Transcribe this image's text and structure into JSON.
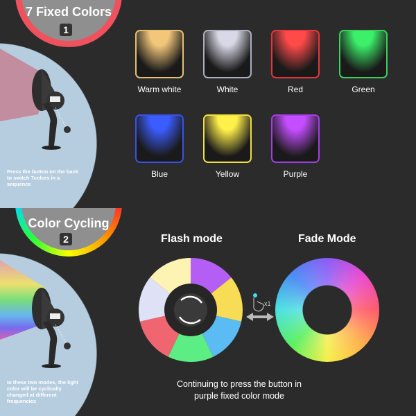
{
  "section1": {
    "title": "7 Fixed Colors",
    "number": "1",
    "note": "Press the button on the back to switch 7colors in a sequence",
    "colors": [
      {
        "label": "Warm white",
        "color": "#f3c77a",
        "border": "#e7c071"
      },
      {
        "label": "White",
        "color": "#d8d8e6",
        "border": "#aab0bf"
      },
      {
        "label": "Red",
        "color": "#ff4a4a",
        "border": "#e8353b"
      },
      {
        "label": "Green",
        "color": "#3cf06a",
        "border": "#39d05b"
      },
      {
        "label": "Blue",
        "color": "#3b5cff",
        "border": "#3a51e6"
      },
      {
        "label": "Yellow",
        "color": "#fff04a",
        "border": "#efe040"
      },
      {
        "label": "Purple",
        "color": "#c44dff",
        "border": "#a43fe6"
      }
    ]
  },
  "section2": {
    "title": "Color Cycling",
    "number": "2",
    "note": "In these two modes, the light color will be cyclically changed at different frequencies",
    "flash_title": "Flash mode",
    "fade_title": "Fade Mode",
    "press_count": "x1",
    "flash_segments": [
      "#b45ef5",
      "#f7dd55",
      "#5bbcf3",
      "#5ced85",
      "#f06670",
      "#dfe2f7",
      "#fdf3b3"
    ],
    "caption_line1": "Continuing to press the button in",
    "caption_line2": "purple fixed color mode"
  }
}
